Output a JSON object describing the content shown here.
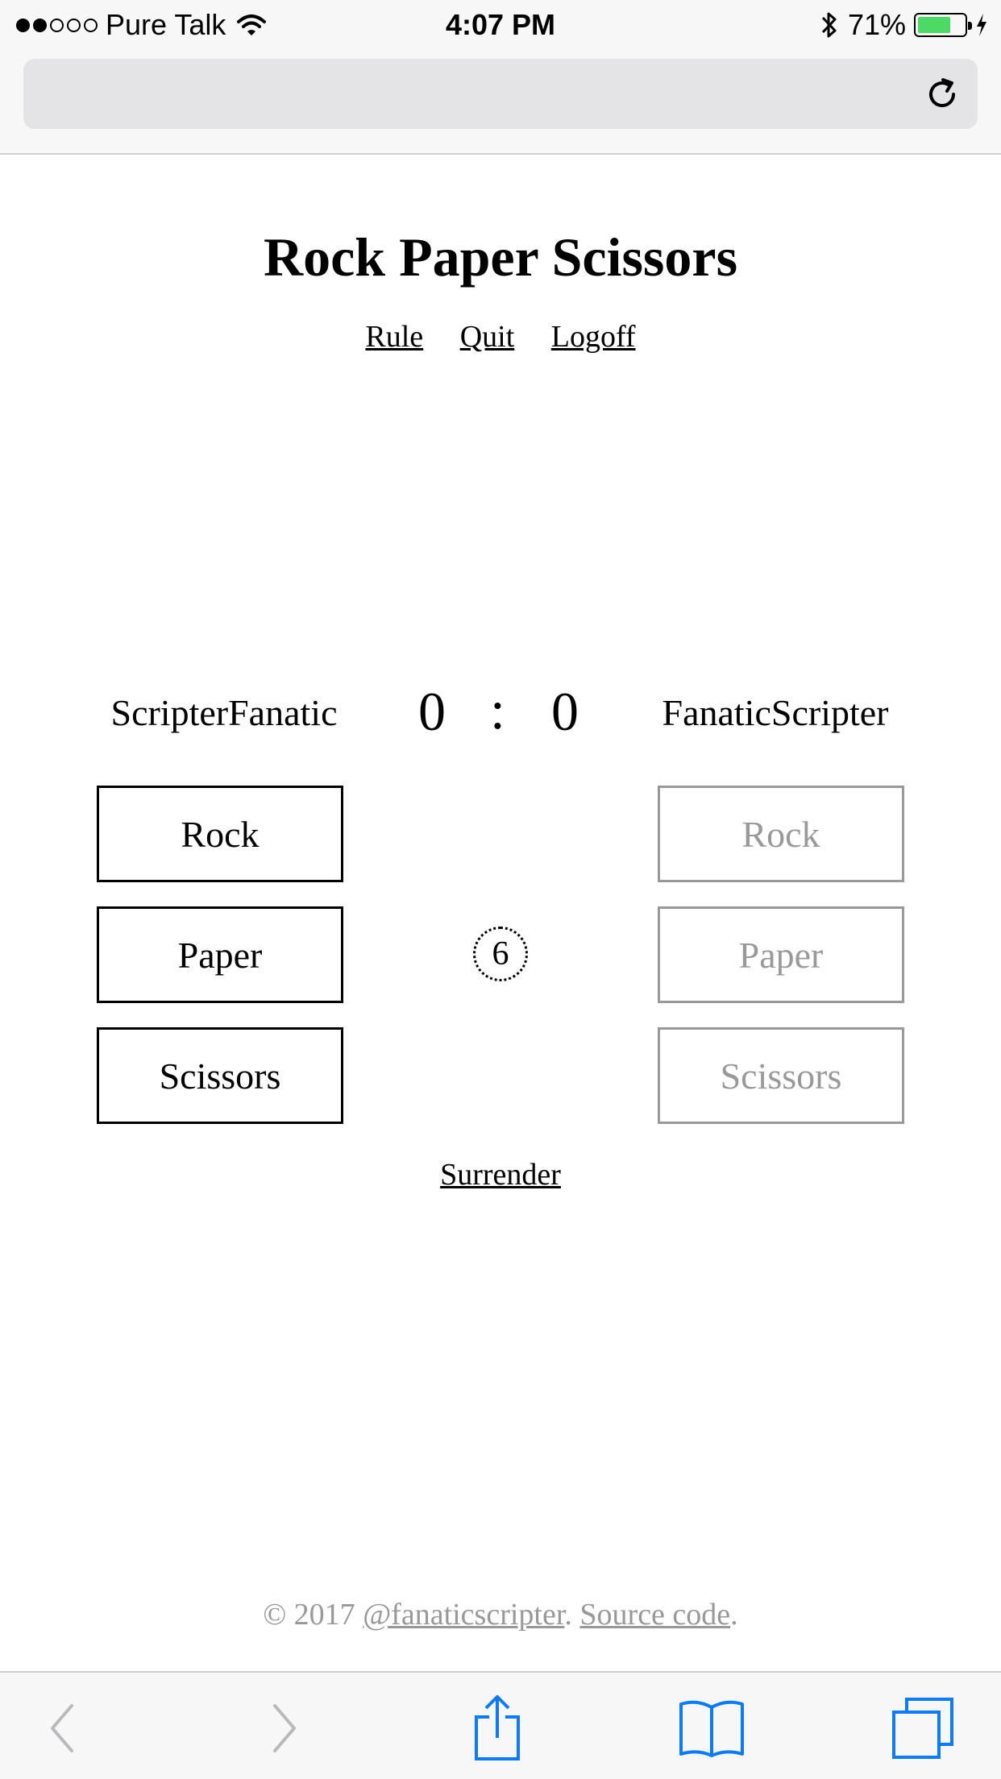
{
  "status_bar": {
    "carrier": "Pure Talk",
    "time": "4:07 PM",
    "battery": "71%",
    "battery_level": 0.71,
    "signal_bars_filled": 2,
    "signal_bars_total": 5
  },
  "page": {
    "title": "Rock Paper Scissors",
    "nav": {
      "rule": "Rule",
      "quit": "Quit",
      "logoff": "Logoff"
    }
  },
  "game": {
    "player1": {
      "name": "ScripterFanatic",
      "score": "0"
    },
    "player2": {
      "name": "FanaticScripter",
      "score": "0"
    },
    "separator": ":",
    "timer": "6",
    "choices": {
      "rock": "Rock",
      "paper": "Paper",
      "scissors": "Scissors"
    },
    "surrender": "Surrender"
  },
  "footer": {
    "copyright": "© 2017",
    "author_link": "@fanaticscripter",
    "separator": ".",
    "source_link": "Source code",
    "end": "."
  },
  "colors": {
    "disabled_gray": "#999999",
    "ios_blue": "#0a7aff",
    "battery_green": "#4cd964"
  }
}
